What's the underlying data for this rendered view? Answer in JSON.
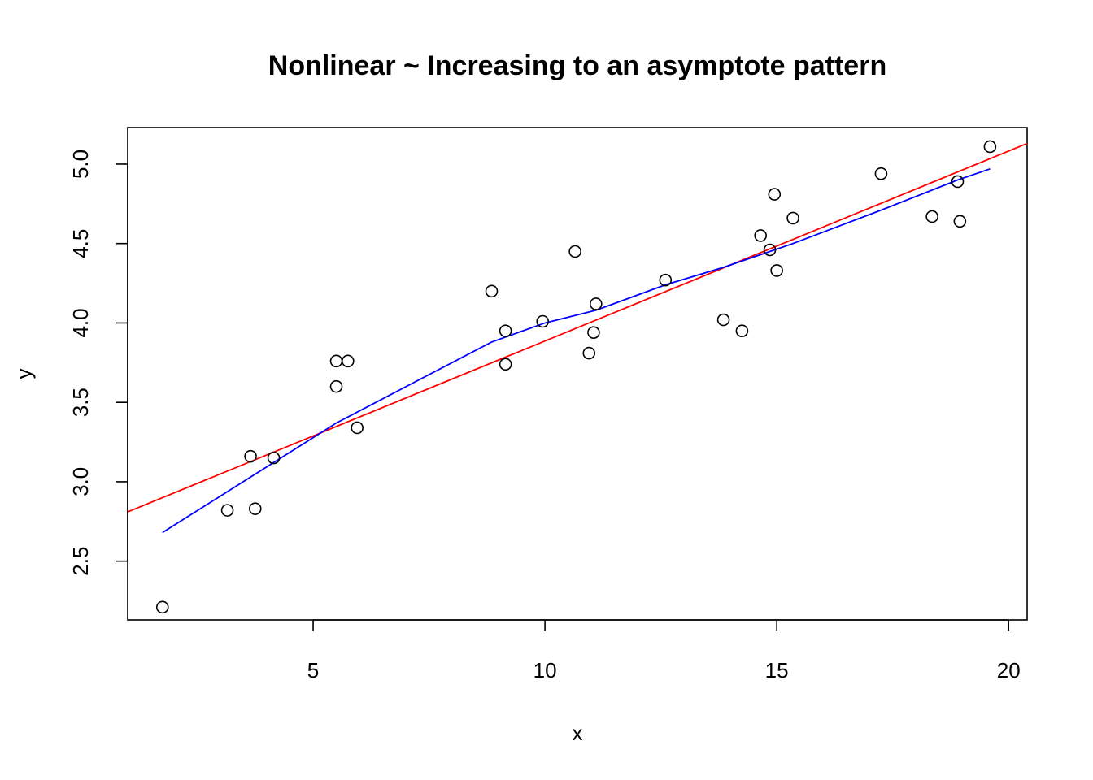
{
  "chart_data": {
    "type": "scatter",
    "title": "Nonlinear ~ Increasing to an asymptote pattern",
    "xlabel": "x",
    "ylabel": "y",
    "xlim": [
      1.0,
      20.4
    ],
    "ylim": [
      2.13,
      5.23
    ],
    "x_ticks": [
      5,
      10,
      15,
      20
    ],
    "x_tick_labels": [
      "5",
      "10",
      "15",
      "20"
    ],
    "y_ticks": [
      2.5,
      3.0,
      3.5,
      4.0,
      4.5,
      5.0
    ],
    "y_tick_labels": [
      "2.5",
      "3.0",
      "3.5",
      "4.0",
      "4.5",
      "5.0"
    ],
    "grid": false,
    "points": {
      "x": [
        1.75,
        3.15,
        3.65,
        3.75,
        4.15,
        5.5,
        5.5,
        5.75,
        5.95,
        8.85,
        9.15,
        9.15,
        9.95,
        10.65,
        10.95,
        11.05,
        11.1,
        12.6,
        13.85,
        14.25,
        14.65,
        14.85,
        14.95,
        15.0,
        15.35,
        17.25,
        18.35,
        18.9,
        18.95,
        19.6
      ],
      "y": [
        2.21,
        2.82,
        3.16,
        2.83,
        3.15,
        3.6,
        3.76,
        3.76,
        3.34,
        4.2,
        3.95,
        3.74,
        4.01,
        4.45,
        3.81,
        3.94,
        4.12,
        4.27,
        4.02,
        3.95,
        4.55,
        4.46,
        4.81,
        4.33,
        4.66,
        4.94,
        4.67,
        4.89,
        4.64,
        5.11
      ],
      "color": "#000000"
    },
    "linear_fit": {
      "x": [
        1.0,
        20.4
      ],
      "y": [
        2.81,
        5.13
      ],
      "color": "#ff0000"
    },
    "smooth_fit": {
      "x": [
        1.75,
        5.5,
        8.85,
        10.0,
        11.1,
        12.6,
        13.85,
        14.85,
        15.35,
        17.25,
        18.9,
        19.6
      ],
      "y": [
        2.68,
        3.37,
        3.88,
        4.0,
        4.08,
        4.24,
        4.35,
        4.45,
        4.5,
        4.71,
        4.9,
        4.97
      ],
      "color": "#0000ff"
    }
  }
}
